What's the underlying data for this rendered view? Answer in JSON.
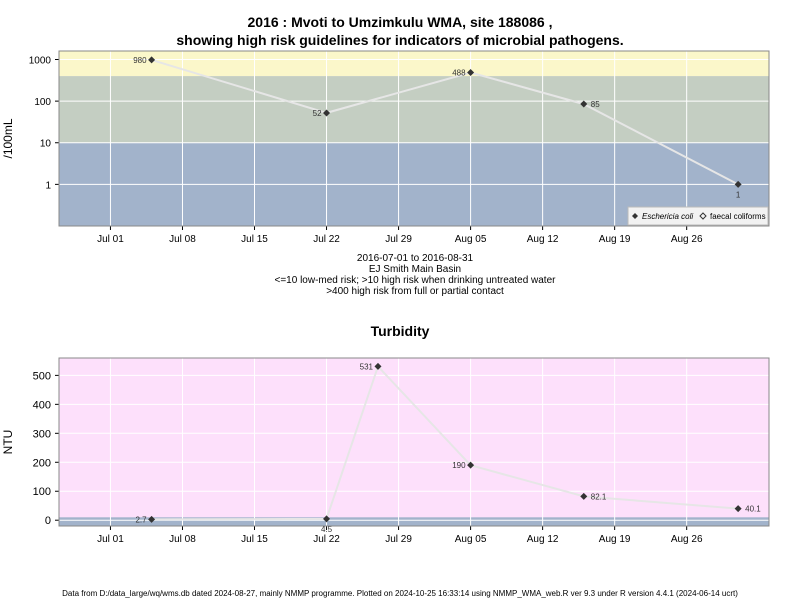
{
  "title_line1": "2016 : Mvoti to Umzimkulu WMA, site 188086 ,",
  "title_line2": "showing high risk guidelines for indicators of microbial pathogens.",
  "subtitle_lines": [
    "2016-07-01 to 2016-08-31",
    "EJ Smith Main Basin",
    "<=10 low-med risk; >10 high risk when drinking untreated water",
    ">400 high risk from full or partial contact"
  ],
  "footer": "Data from D:/data_large/wq/wms.db dated 2024-08-27, mainly NMMP programme. Plotted on 2024-10-25 16:33:14 using NMMP_WMA_web.R ver 9.3 under R version 4.4.1 (2024-06-14 ucrt)",
  "colors": {
    "band_low": "#a2b3cb",
    "band_high": "#c4cec2",
    "band_top": "#fbf7ca",
    "turbidity_bg": "#fde0fb",
    "turbidity_band": "#a2b3cb",
    "line": "#e6e6e6",
    "point": "#333333"
  },
  "chart_data": [
    {
      "type": "line",
      "ylabel": "/100mL",
      "y_scale": "log",
      "ylim": [
        0.1,
        1600
      ],
      "y_ticks": [
        1,
        10,
        100,
        1000
      ],
      "y_tick_labels": [
        "1",
        "10",
        "100",
        "1000"
      ],
      "xlim": [
        "2016-06-26",
        "2016-09-03"
      ],
      "x_ticks": [
        "2016-07-01",
        "2016-07-08",
        "2016-07-15",
        "2016-07-22",
        "2016-07-29",
        "2016-08-05",
        "2016-08-12",
        "2016-08-19",
        "2016-08-26"
      ],
      "x_tick_labels": [
        "Jul 01",
        "Jul 08",
        "Jul 15",
        "Jul 22",
        "Jul 29",
        "Aug 05",
        "Aug 12",
        "Aug 19",
        "Aug 26"
      ],
      "bands": [
        {
          "from": 0.1,
          "to": 10,
          "level": "low"
        },
        {
          "from": 10,
          "to": 400,
          "level": "high"
        },
        {
          "from": 400,
          "to": 1600,
          "level": "top"
        }
      ],
      "legend_position": "bottom-right",
      "legend": [
        "Eschericia coli",
        "faecal coliforms"
      ],
      "series": [
        {
          "name": "Eschericia coli",
          "x": [
            "2016-07-05",
            "2016-07-22",
            "2016-08-05",
            "2016-08-16",
            "2016-08-31"
          ],
          "values": [
            980,
            52,
            488,
            85,
            1
          ],
          "labels": [
            "980",
            "52",
            "488",
            "85",
            "1"
          ]
        }
      ]
    },
    {
      "type": "line",
      "title": "Turbidity",
      "ylabel": "NTU",
      "ylim": [
        -20,
        560
      ],
      "y_ticks": [
        0,
        100,
        200,
        300,
        400,
        500
      ],
      "y_tick_labels": [
        "0",
        "100",
        "200",
        "300",
        "400",
        "500"
      ],
      "xlim": [
        "2016-06-26",
        "2016-09-03"
      ],
      "x_ticks": [
        "2016-07-01",
        "2016-07-08",
        "2016-07-15",
        "2016-07-22",
        "2016-07-29",
        "2016-08-05",
        "2016-08-12",
        "2016-08-19",
        "2016-08-26"
      ],
      "x_tick_labels": [
        "Jul 01",
        "Jul 08",
        "Jul 15",
        "Jul 22",
        "Jul 29",
        "Aug 05",
        "Aug 12",
        "Aug 19",
        "Aug 26"
      ],
      "band": {
        "from": -20,
        "to": 10
      },
      "series": [
        {
          "name": "Turbidity",
          "x": [
            "2016-07-05",
            "2016-07-22",
            "2016-07-27",
            "2016-08-05",
            "2016-08-16",
            "2016-08-31"
          ],
          "values": [
            2.7,
            4.5,
            531,
            190,
            82.1,
            40.1
          ],
          "labels": [
            "2.7",
            "4.5",
            "531",
            "190",
            "82.1",
            "40.1"
          ]
        }
      ]
    }
  ]
}
